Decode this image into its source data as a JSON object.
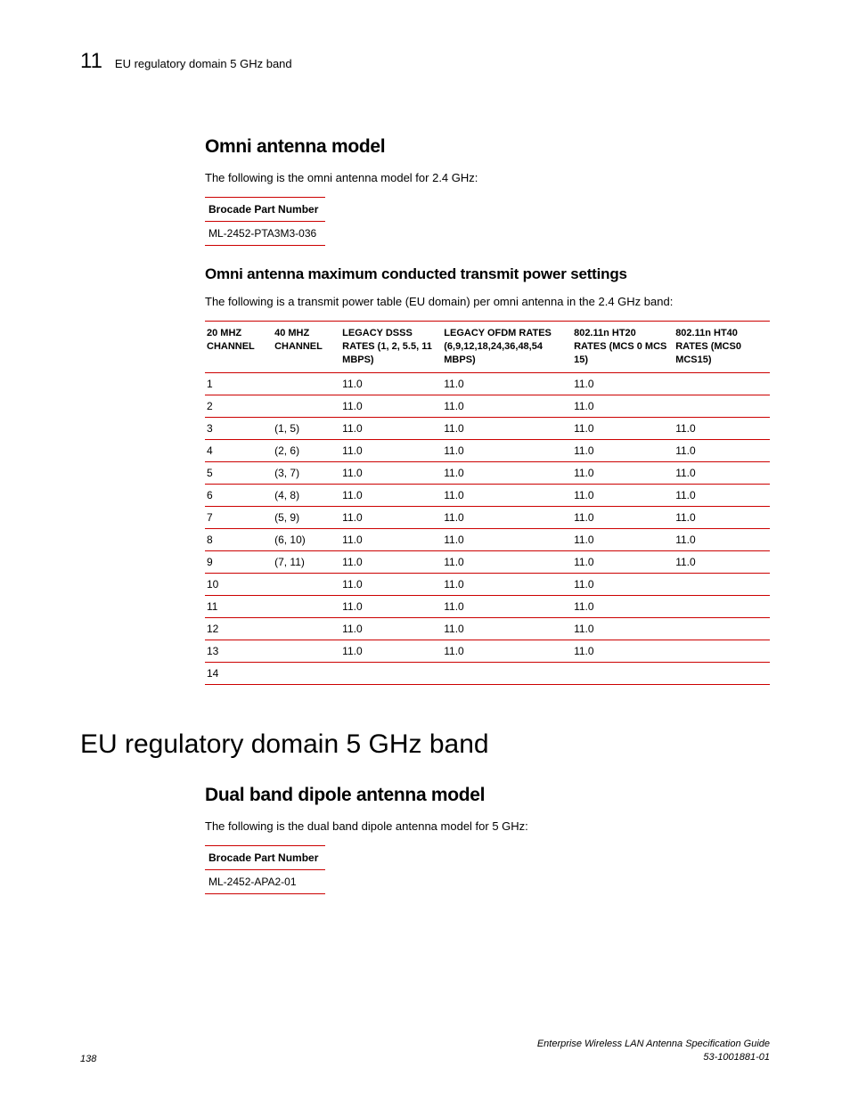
{
  "header": {
    "chapter": "11",
    "title": "EU regulatory domain 5 GHz band"
  },
  "section1": {
    "heading": "Omni antenna model",
    "intro": "The following is the omni antenna model for 2.4 GHz:",
    "part_table": {
      "header": "Brocade Part Number",
      "value": "ML-2452-PTA3M3-036"
    },
    "sub_heading": "Omni antenna maximum conducted transmit power settings",
    "sub_intro": "The following is a transmit power table (EU domain) per omni antenna in the 2.4 GHz band:"
  },
  "main_table": {
    "headers": [
      "20 MHZ CHANNEL",
      "40 MHZ CHANNEL",
      "LEGACY DSSS RATES (1, 2, 5.5, 11 MBPS)",
      "LEGACY OFDM RATES (6,9,12,18,24,36,48,54 MBPS)",
      "802.11n HT20 RATES (MCS 0 MCS 15)",
      "802.11n HT40 RATES (MCS0   MCS15)"
    ],
    "col_widths": [
      "12%",
      "12%",
      "18%",
      "23%",
      "18%",
      "17%"
    ],
    "rows": [
      [
        "1",
        "",
        "11.0",
        "11.0",
        "11.0",
        ""
      ],
      [
        "2",
        "",
        "11.0",
        "11.0",
        "11.0",
        ""
      ],
      [
        "3",
        "(1, 5)",
        "11.0",
        "11.0",
        "11.0",
        "11.0"
      ],
      [
        "4",
        "(2, 6)",
        "11.0",
        "11.0",
        "11.0",
        "11.0"
      ],
      [
        "5",
        "(3, 7)",
        "11.0",
        "11.0",
        "11.0",
        "11.0"
      ],
      [
        "6",
        "(4, 8)",
        "11.0",
        "11.0",
        "11.0",
        "11.0"
      ],
      [
        "7",
        "(5, 9)",
        "11.0",
        "11.0",
        "11.0",
        "11.0"
      ],
      [
        "8",
        "(6, 10)",
        "11.0",
        "11.0",
        "11.0",
        "11.0"
      ],
      [
        "9",
        "(7, 11)",
        "11.0",
        "11.0",
        "11.0",
        "11.0"
      ],
      [
        "10",
        "",
        "11.0",
        "11.0",
        "11.0",
        ""
      ],
      [
        "11",
        "",
        "11.0",
        "11.0",
        "11.0",
        ""
      ],
      [
        "12",
        "",
        "11.0",
        "11.0",
        "11.0",
        ""
      ],
      [
        "13",
        "",
        "11.0",
        "11.0",
        "11.0",
        ""
      ],
      [
        "14",
        "",
        "",
        "",
        "",
        ""
      ]
    ]
  },
  "section2": {
    "heading": "EU regulatory domain 5 GHz band",
    "sub_heading": "Dual band dipole antenna model",
    "intro": "The following is the dual band dipole antenna model for 5 GHz:",
    "part_table": {
      "header": "Brocade Part Number",
      "value": "ML-2452-APA2-01"
    }
  },
  "footer": {
    "page_num": "138",
    "guide": "Enterprise Wireless LAN Antenna Specification Guide",
    "doc_num": "53-1001881-01"
  },
  "colors": {
    "rule": "#cc0000",
    "text": "#000000",
    "background": "#ffffff"
  }
}
